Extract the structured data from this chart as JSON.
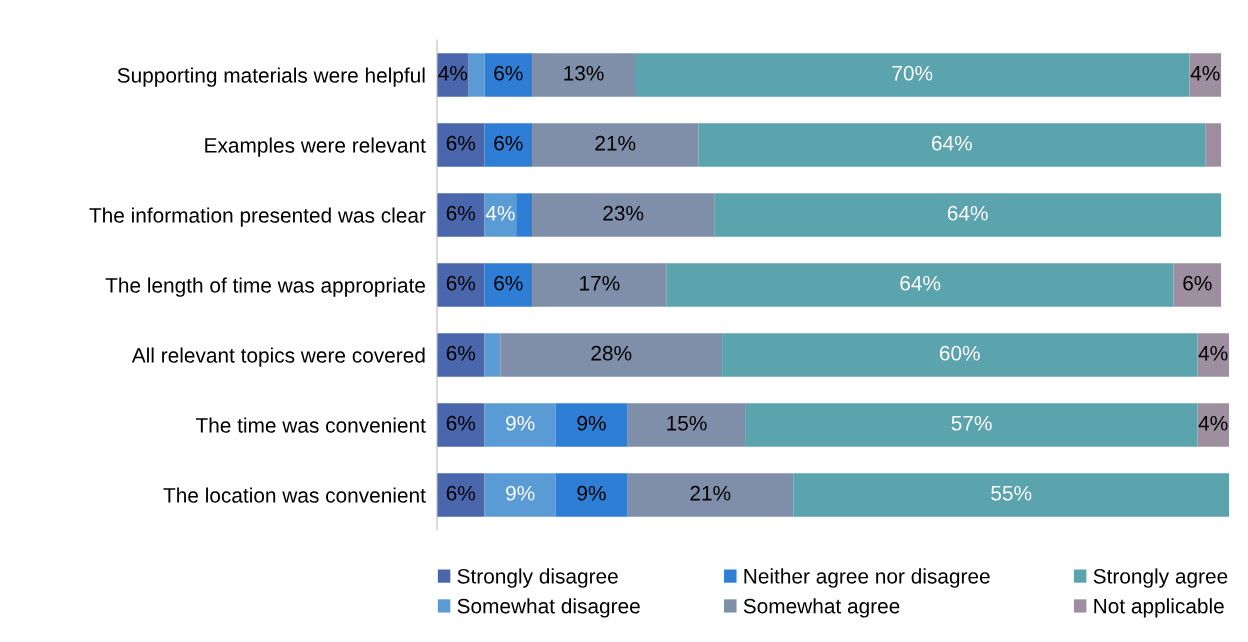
{
  "chart_data": {
    "type": "bar",
    "orientation": "horizontal",
    "stacked": true,
    "legend": "bottom",
    "grid": false,
    "categories": [
      "Supporting materials were helpful",
      "Examples were relevant",
      "The information presented was clear",
      "The length of time was appropriate",
      "All relevant topics were covered",
      "The time was convenient",
      "The location was convenient"
    ],
    "series": [
      {
        "name": "Strongly disagree",
        "color": "#4a66ac",
        "values": [
          4,
          6,
          6,
          6,
          6,
          6,
          6
        ],
        "value_labels": [
          "4%",
          "6%",
          "6%",
          "6%",
          "6%",
          "6%",
          "6%"
        ]
      },
      {
        "name": "Somewhat disagree",
        "color": "#5b9bd5",
        "values": [
          2,
          0,
          4,
          0,
          2,
          9,
          9
        ],
        "value_labels": [
          null,
          null,
          "4%",
          null,
          null,
          "9%",
          "9%"
        ]
      },
      {
        "name": "Neither agree nor disagree",
        "color": "#2e7ed6",
        "values": [
          6,
          6,
          2,
          6,
          0,
          9,
          9
        ],
        "value_labels": [
          "6%",
          "6%",
          null,
          "6%",
          null,
          "9%",
          "9%"
        ]
      },
      {
        "name": "Somewhat agree",
        "color": "#7f8fa9",
        "values": [
          13,
          21,
          23,
          17,
          28,
          15,
          21
        ],
        "value_labels": [
          "13%",
          "21%",
          "23%",
          "17%",
          "28%",
          "15%",
          "21%"
        ]
      },
      {
        "name": "Strongly agree",
        "color": "#5ba3ad",
        "values": [
          70,
          64,
          64,
          64,
          60,
          57,
          55
        ],
        "value_labels": [
          "70%",
          "64%",
          "64%",
          "64%",
          "60%",
          "57%",
          "55%"
        ]
      },
      {
        "name": "Not applicable",
        "color": "#9e8fa0",
        "values": [
          4,
          2,
          0,
          6,
          4,
          4,
          0
        ],
        "value_labels": [
          "4%",
          null,
          null,
          "6%",
          "4%",
          "4%",
          null
        ]
      }
    ]
  }
}
